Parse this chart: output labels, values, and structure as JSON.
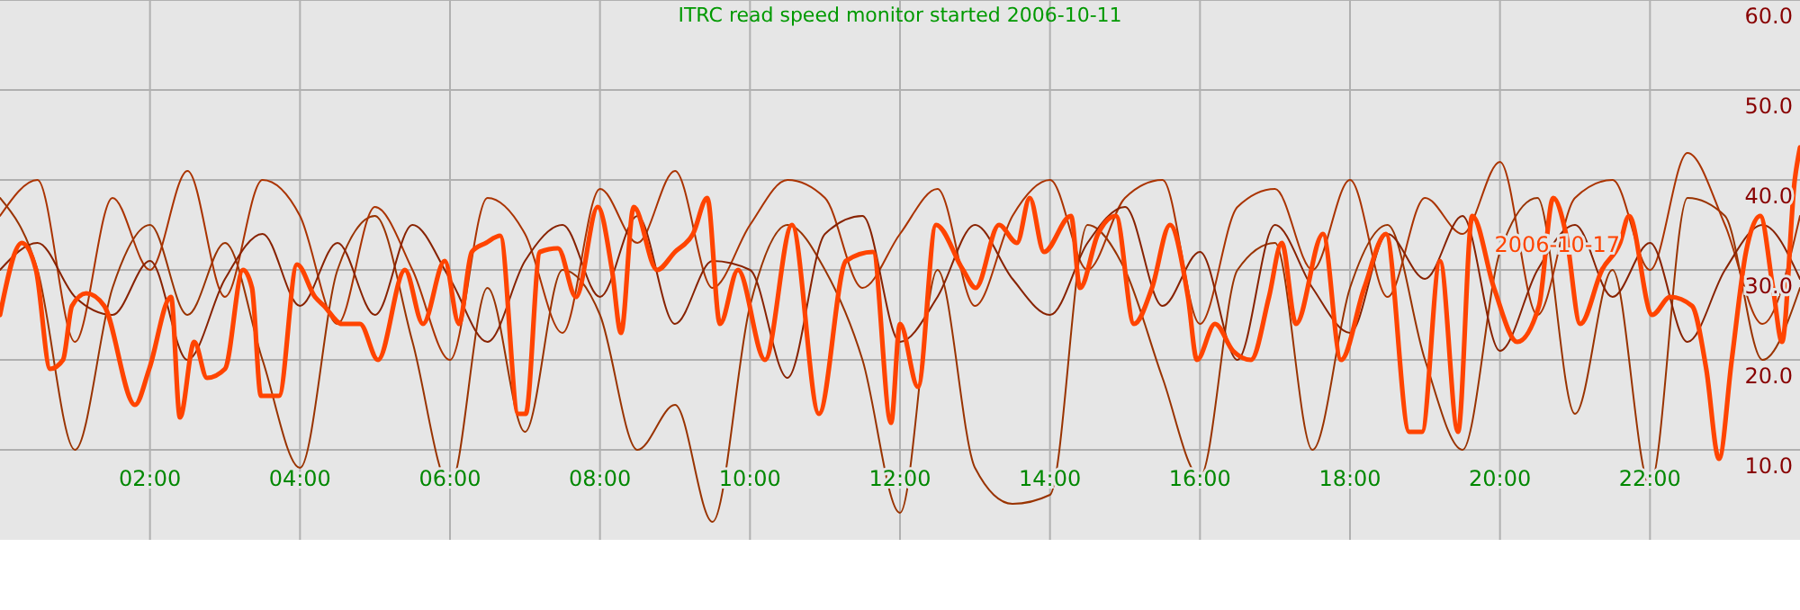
{
  "chart_data": {
    "type": "line",
    "title": "ITRC read speed monitor started 2006-10-11",
    "x": [
      0,
      0.5,
      1,
      1.5,
      2,
      2.5,
      3,
      3.5,
      4,
      4.5,
      5,
      5.5,
      6,
      6.5,
      7,
      7.5,
      8,
      8.5,
      9,
      9.5,
      10,
      10.5,
      11,
      11.5,
      12,
      12.5,
      13,
      13.5,
      14,
      14.5,
      15,
      15.5,
      16,
      16.5,
      17,
      17.5,
      18,
      18.5,
      19,
      19.5,
      20,
      20.5,
      21,
      21.5,
      22,
      22.5,
      23,
      23.5,
      24
    ],
    "series": [
      {
        "color": "#993300",
        "values": [
          38,
          30,
          10,
          28,
          35,
          25,
          33,
          20,
          8,
          30,
          36,
          22,
          6,
          28,
          12,
          30,
          25,
          10,
          15,
          2,
          26,
          35,
          30,
          20,
          3,
          30,
          8,
          4,
          5,
          35,
          30,
          18,
          7,
          30,
          33,
          10,
          28,
          35,
          20,
          10,
          32,
          38,
          14,
          30,
          6,
          38,
          36,
          20,
          28
        ]
      },
      {
        "color": "#aa3300",
        "values": [
          36,
          40,
          22,
          38,
          30,
          41,
          27,
          40,
          36,
          24,
          37,
          30,
          20,
          38,
          34,
          23,
          39,
          33,
          41,
          28,
          35,
          40,
          38,
          28,
          34,
          39,
          26,
          36,
          40,
          30,
          38,
          40,
          24,
          37,
          39,
          30,
          40,
          27,
          38,
          34,
          42,
          25,
          38,
          40,
          30,
          43,
          35,
          24,
          36
        ]
      },
      {
        "color": "#882200",
        "values": [
          30,
          33,
          27,
          25,
          31,
          20,
          29,
          34,
          26,
          33,
          25,
          35,
          29,
          22,
          31,
          35,
          27,
          36,
          24,
          31,
          30,
          18,
          34,
          36,
          22,
          27,
          35,
          29,
          25,
          33,
          37,
          26,
          32,
          20,
          35,
          28,
          23,
          34,
          29,
          36,
          21,
          30,
          35,
          27,
          33,
          22,
          30,
          35,
          29
        ]
      },
      {
        "name": "2006-10-17",
        "color": "#ff4400",
        "x": [
          0,
          0.29,
          0.48,
          0.67,
          0.84,
          0.96,
          1.15,
          1.39,
          1.8,
          1.99,
          2.28,
          2.4,
          2.59,
          2.76,
          3.0,
          3.24,
          3.36,
          3.48,
          3.72,
          3.96,
          4.2,
          4.32,
          4.56,
          4.8,
          5.04,
          5.4,
          5.64,
          5.93,
          6.12,
          6.29,
          6.48,
          6.67,
          6.91,
          7.01,
          7.2,
          7.44,
          7.68,
          7.97,
          8.16,
          8.28,
          8.45,
          8.76,
          9.0,
          9.24,
          9.43,
          9.6,
          9.84,
          10.2,
          10.56,
          10.92,
          11.28,
          11.64,
          11.88,
          12.0,
          12.24,
          12.48,
          12.84,
          13.01,
          13.32,
          13.56,
          13.73,
          13.92,
          14.28,
          14.4,
          14.64,
          14.88,
          15.12,
          15.36,
          15.6,
          15.84,
          15.96,
          16.2,
          16.44,
          16.68,
          16.92,
          17.09,
          17.28,
          17.64,
          17.88,
          18.19,
          18.48,
          18.79,
          18.96,
          19.2,
          19.44,
          19.63,
          19.92,
          20.23,
          20.52,
          20.71,
          20.88,
          21.07,
          21.36,
          21.6,
          21.72,
          22.03,
          22.27,
          22.56,
          22.75,
          22.92,
          23.09,
          23.28,
          23.47,
          23.64,
          23.76,
          23.93,
          24
        ],
        "values": [
          25,
          33,
          30,
          19,
          20,
          26,
          27.4,
          26,
          15,
          19,
          27,
          13.6,
          22,
          18,
          19,
          30,
          28,
          16,
          16,
          30.6,
          27,
          26,
          24,
          24,
          20,
          30,
          24,
          31,
          24,
          32,
          33,
          33.8,
          14,
          14,
          32,
          32.4,
          27,
          37,
          30,
          23,
          37,
          30,
          32,
          34,
          38,
          24,
          30,
          20,
          35,
          14,
          31,
          32,
          13,
          24,
          17,
          35,
          30,
          28,
          35,
          33,
          38,
          32,
          36,
          28,
          34,
          36,
          24,
          28,
          35,
          27,
          20,
          24,
          21,
          20,
          27,
          33,
          24,
          34,
          20,
          28,
          34,
          12,
          12,
          31,
          12,
          36,
          28,
          22,
          26,
          38,
          34,
          24,
          30,
          33,
          36,
          25,
          27,
          26,
          19,
          9,
          20,
          32,
          36,
          28,
          22,
          40,
          43.6
        ]
      }
    ],
    "xlim": [
      0,
      24
    ],
    "ylim": [
      0,
      60
    ],
    "xticks": [
      {
        "value": 2,
        "label": "02:00"
      },
      {
        "value": 4,
        "label": "04:00"
      },
      {
        "value": 6,
        "label": "06:00"
      },
      {
        "value": 8,
        "label": "08:00"
      },
      {
        "value": 10,
        "label": "10:00"
      },
      {
        "value": 12,
        "label": "12:00"
      },
      {
        "value": 14,
        "label": "14:00"
      },
      {
        "value": 16,
        "label": "16:00"
      },
      {
        "value": 18,
        "label": "18:00"
      },
      {
        "value": 20,
        "label": "20:00"
      },
      {
        "value": 22,
        "label": "22:00"
      }
    ],
    "yticks": [
      {
        "value": 10,
        "label": "10.0"
      },
      {
        "value": 20,
        "label": "20.0"
      },
      {
        "value": 30,
        "label": "30.0"
      },
      {
        "value": 40,
        "label": "40.0"
      },
      {
        "value": 50,
        "label": "50.0"
      },
      {
        "value": 60,
        "label": "60.0"
      }
    ],
    "grid": true,
    "legend": "right",
    "line_style": "solid",
    "marker": "none"
  }
}
